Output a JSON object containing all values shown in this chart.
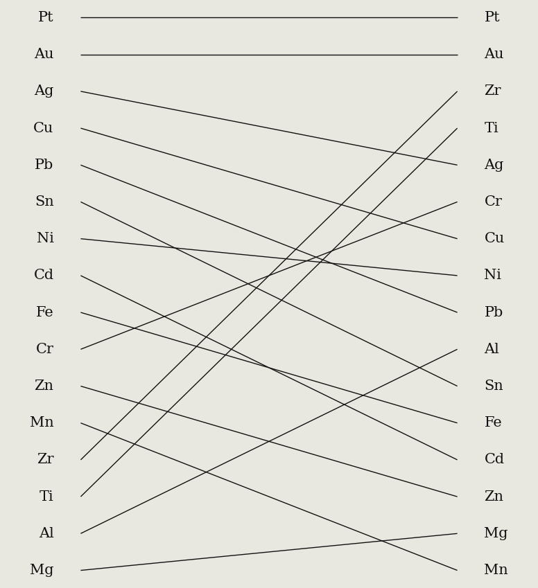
{
  "left_labels": [
    "Pt",
    "Au",
    "Ag",
    "Cu",
    "Pb",
    "Sn",
    "Ni",
    "Cd",
    "Fe",
    "Cr",
    "Zn",
    "Mn",
    "Zr",
    "Ti",
    "Al",
    "Mg"
  ],
  "right_labels": [
    "Pt",
    "Au",
    "Zr",
    "Ti",
    "Ag",
    "Cr",
    "Cu",
    "Ni",
    "Pb",
    "Al",
    "Sn",
    "Fe",
    "Cd",
    "Zn",
    "Mg",
    "Mn"
  ],
  "connections": [
    [
      "Pt",
      "Pt"
    ],
    [
      "Au",
      "Au"
    ],
    [
      "Ag",
      "Ag"
    ],
    [
      "Cu",
      "Cu"
    ],
    [
      "Pb",
      "Pb"
    ],
    [
      "Sn",
      "Sn"
    ],
    [
      "Ni",
      "Ni"
    ],
    [
      "Cd",
      "Cd"
    ],
    [
      "Fe",
      "Fe"
    ],
    [
      "Cr",
      "Cr"
    ],
    [
      "Zn",
      "Zn"
    ],
    [
      "Mn",
      "Mn"
    ],
    [
      "Zr",
      "Zr"
    ],
    [
      "Ti",
      "Ti"
    ],
    [
      "Al",
      "Al"
    ],
    [
      "Mg",
      "Mg"
    ]
  ],
  "bg_color": "#e8e8e0",
  "line_color": "#111111",
  "label_color": "#111111",
  "fontsize": 15,
  "figsize": [
    7.76,
    8.49
  ],
  "dpi": 100
}
